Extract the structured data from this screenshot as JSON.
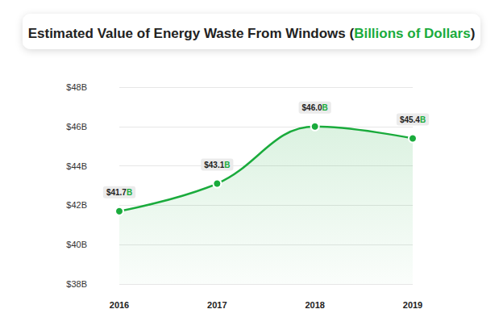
{
  "chart_data": {
    "type": "line",
    "title": "Estimated Value of Energy Waste From Windows (Billions of Dollars)",
    "categories": [
      "2016",
      "2017",
      "2018",
      "2019"
    ],
    "values": [
      41.7,
      43.1,
      46.0,
      45.4
    ],
    "value_labels": [
      "$41.7B",
      "$43.1B",
      "$46.0B",
      "$45.4B"
    ],
    "color": "#1aab3c",
    "marker": "circle",
    "ylim": [
      38,
      48
    ],
    "yticks": [
      {
        "value": 38,
        "label": "$38B"
      },
      {
        "value": 40,
        "label": "$40B"
      },
      {
        "value": 42,
        "label": "$42B"
      },
      {
        "value": 44,
        "label": "$44B"
      },
      {
        "value": 46,
        "label": "$46B"
      },
      {
        "value": 48,
        "label": "$48B"
      }
    ],
    "grid": true,
    "data_labels": true
  }
}
